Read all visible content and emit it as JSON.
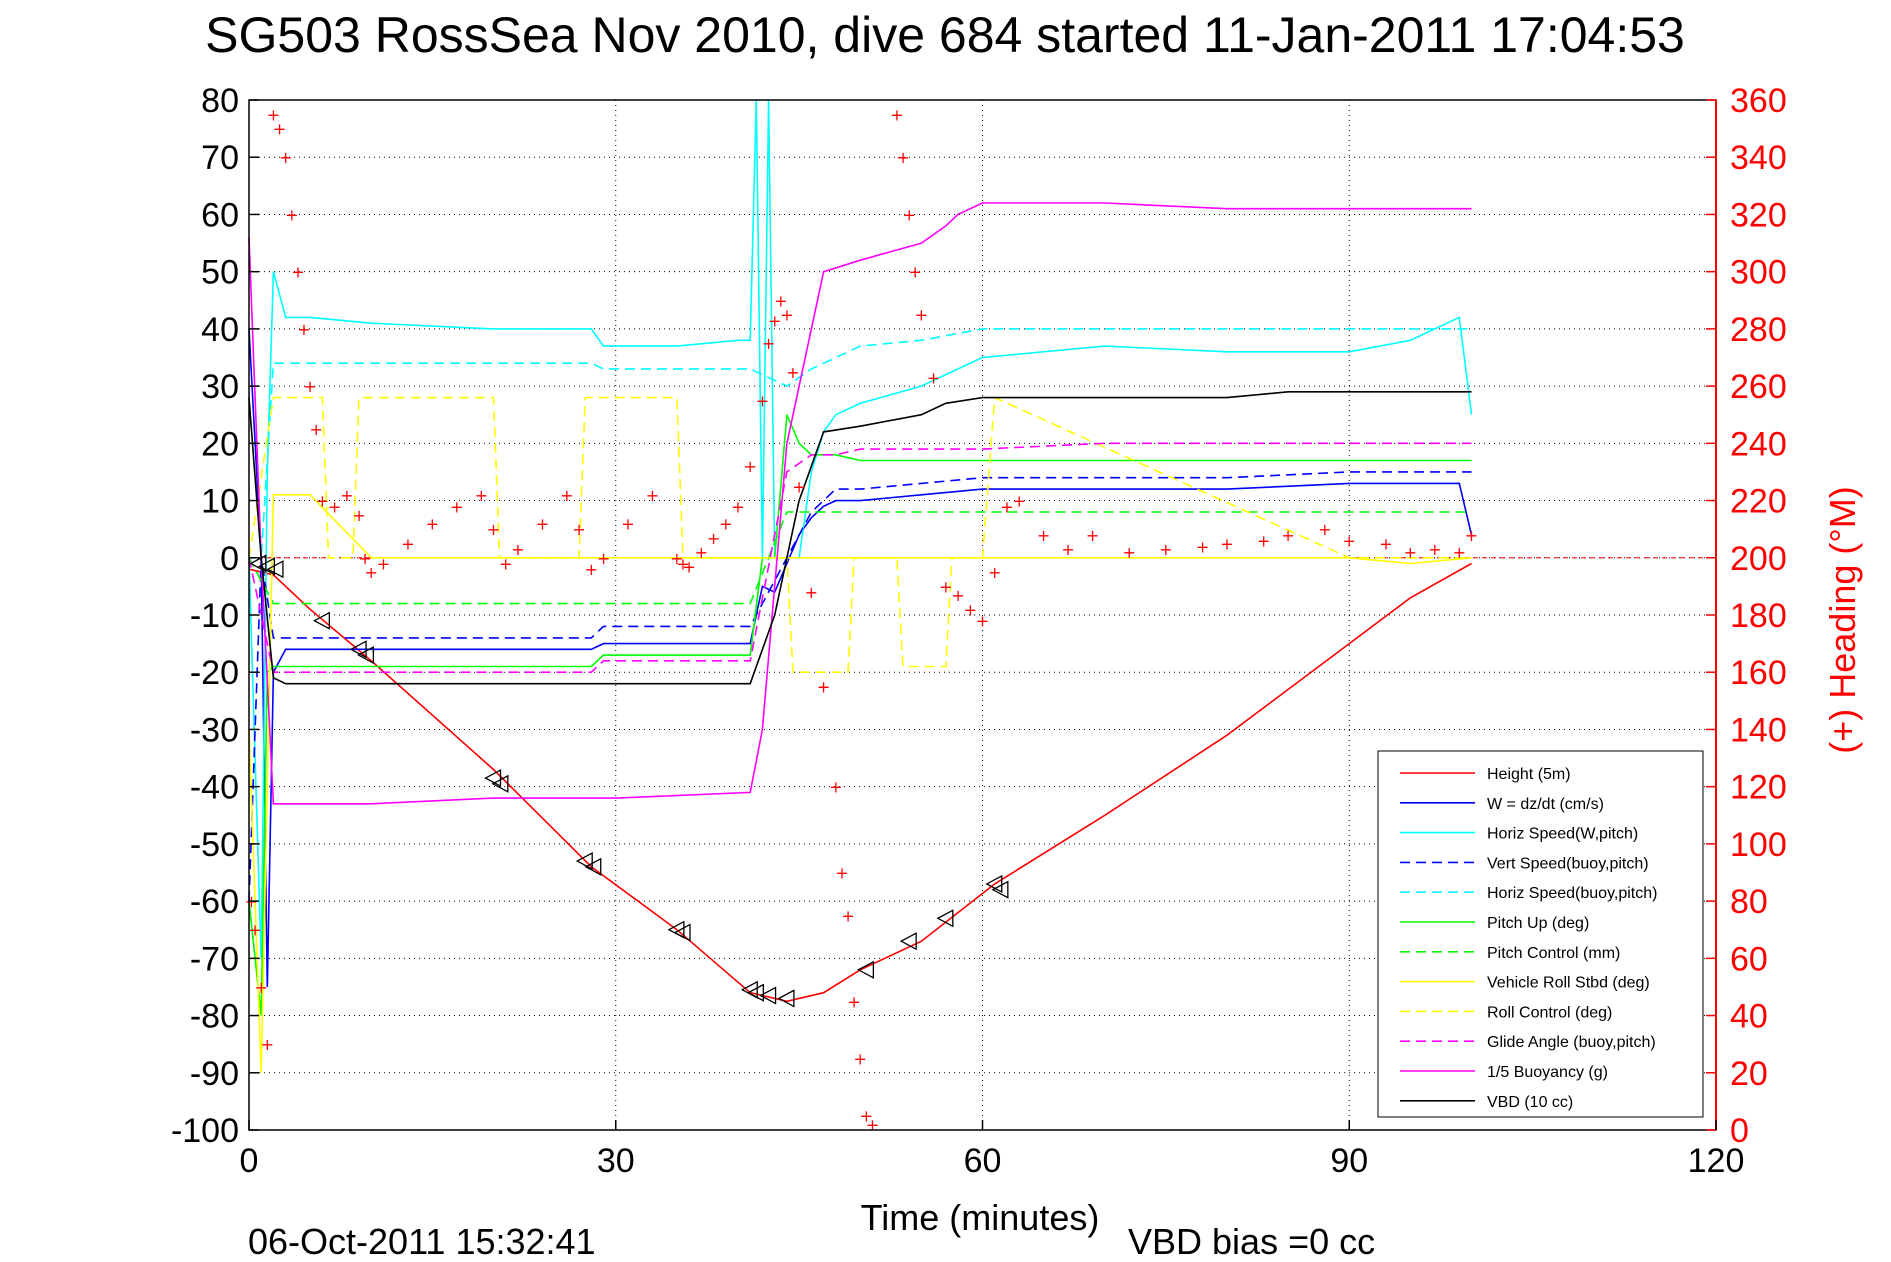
{
  "chart_data": {
    "type": "line",
    "title": "SG503 RossSea Nov 2010, dive 684 started 11-Jan-2011 17:04:53",
    "xlabel": "Time (minutes)",
    "ylabel_right": "(+) Heading (°M)",
    "xlim": [
      0,
      120
    ],
    "ylim": [
      -100,
      80
    ],
    "ylim_right": [
      0,
      360
    ],
    "x_ticks": [
      "0",
      "30",
      "60",
      "90",
      "120"
    ],
    "y_ticks_left": [
      "80",
      "70",
      "60",
      "50",
      "40",
      "30",
      "20",
      "10",
      "0",
      "-10",
      "-20",
      "-30",
      "-40",
      "-50",
      "-60",
      "-70",
      "-80",
      "-90",
      "-100"
    ],
    "y_ticks_right": [
      "360",
      "340",
      "320",
      "300",
      "280",
      "260",
      "240",
      "220",
      "200",
      "180",
      "160",
      "140",
      "120",
      "100",
      "80",
      "60",
      "40",
      "20",
      "0"
    ],
    "grid": true,
    "legend_position": "lower-right",
    "footer_left": "06-Oct-2011 15:32:41",
    "footer_right": "VBD bias =0 cc",
    "series": [
      {
        "name": "Height (5m)",
        "color": "#ff0000",
        "style": "solid",
        "x": [
          0,
          2,
          5,
          10,
          20,
          28,
          35,
          41,
          44,
          47,
          50,
          55,
          61,
          70,
          80,
          90,
          95,
          100
        ],
        "y": [
          -2,
          -3,
          -9,
          -18,
          -37,
          -54,
          -65,
          -76,
          -77.5,
          -76,
          -72,
          -67,
          -57,
          -45,
          -31,
          -15,
          -7,
          -1
        ]
      },
      {
        "name": "W = dz/dt (cm/s)",
        "color": "#0000ff",
        "style": "solid",
        "x": [
          0,
          1,
          1.5,
          2,
          3,
          5,
          10,
          20,
          28,
          29,
          35,
          40,
          41,
          42,
          43,
          45,
          46,
          47,
          48,
          50,
          55,
          60,
          65,
          70,
          80,
          90,
          95,
          99,
          100
        ],
        "y": [
          40,
          0,
          -75,
          -20,
          -16,
          -16,
          -16,
          -16,
          -16,
          -15,
          -15,
          -15,
          -15,
          -5,
          -6,
          4,
          7,
          9,
          10,
          10,
          11,
          12,
          12,
          12,
          12,
          13,
          13,
          13,
          4
        ]
      },
      {
        "name": "Horiz Speed(W,pitch)",
        "color": "#00ffff",
        "style": "solid",
        "x": [
          0,
          1,
          1.5,
          2,
          3,
          5,
          10,
          20,
          28,
          29,
          35,
          40,
          41,
          41.5,
          42,
          42.5,
          43,
          45,
          46,
          47,
          48,
          50,
          55,
          58,
          60,
          70,
          80,
          85,
          90,
          95,
          99,
          100
        ],
        "y": [
          0,
          -70,
          15,
          50,
          42,
          42,
          41,
          40,
          40,
          37,
          37,
          38,
          38,
          80,
          0,
          80,
          0,
          0,
          15,
          22,
          25,
          27,
          30,
          33,
          35,
          37,
          36,
          36,
          36,
          38,
          42,
          25
        ]
      },
      {
        "name": "Vert Speed(buoy,pitch)",
        "color": "#0000ff",
        "style": "dashed",
        "x": [
          0,
          1,
          2,
          3,
          5,
          10,
          20,
          28,
          29,
          35,
          41,
          44,
          46,
          48,
          50,
          55,
          60,
          70,
          80,
          90,
          95,
          100
        ],
        "y": [
          -60,
          0,
          -14,
          -14,
          -14,
          -14,
          -14,
          -14,
          -12,
          -12,
          -12,
          0,
          8,
          12,
          12,
          13,
          14,
          14,
          14,
          15,
          15,
          15
        ]
      },
      {
        "name": "Horiz Speed(buoy,pitch)",
        "color": "#00ffff",
        "style": "dashed",
        "x": [
          0,
          1,
          2,
          3,
          5,
          10,
          20,
          28,
          29,
          35,
          41,
          44,
          46,
          48,
          50,
          55,
          60,
          70,
          80,
          90,
          95,
          100
        ],
        "y": [
          0,
          0,
          34,
          34,
          34,
          34,
          34,
          34,
          33,
          33,
          33,
          30,
          33,
          35,
          37,
          38,
          40,
          40,
          40,
          40,
          40,
          40
        ]
      },
      {
        "name": "Pitch Up (deg)",
        "color": "#00ff00",
        "style": "solid",
        "x": [
          0,
          1,
          1.5,
          2,
          3,
          5,
          10,
          20,
          28,
          29,
          35,
          41,
          42,
          43,
          44,
          45,
          46,
          48,
          50,
          55,
          60,
          70,
          80,
          90,
          95,
          100
        ],
        "y": [
          -60,
          -80,
          -20,
          -19,
          -19,
          -19,
          -19,
          -19,
          -19,
          -17,
          -17,
          -17,
          0,
          0,
          25,
          20,
          18,
          18,
          17,
          17,
          17,
          17,
          17,
          17,
          17,
          17
        ]
      },
      {
        "name": "Pitch Control (mm)",
        "color": "#00ff00",
        "style": "dashed",
        "x": [
          0,
          2,
          3,
          10,
          20,
          30,
          41,
          44,
          47,
          50,
          60,
          70,
          80,
          90,
          100
        ],
        "y": [
          0,
          -8,
          -8,
          -8,
          -8,
          -8,
          -8,
          8,
          8,
          8,
          8,
          8,
          8,
          8,
          8
        ]
      },
      {
        "name": "Vehicle Roll Stbd (deg)",
        "color": "#ffff00",
        "style": "solid",
        "x": [
          0,
          1,
          2,
          3,
          5,
          10,
          20,
          28,
          35,
          41,
          43,
          45,
          50,
          60,
          70,
          80,
          90,
          95,
          100
        ],
        "y": [
          -30,
          -90,
          11,
          11,
          11,
          0,
          0,
          0,
          0,
          0,
          0,
          0,
          0,
          0,
          0,
          0,
          0,
          -1,
          0
        ]
      },
      {
        "name": "Roll Control (deg)",
        "color": "#ffff00",
        "style": "dashed",
        "x": [
          0,
          2,
          3,
          6,
          6.5,
          8.5,
          9,
          20,
          20.5,
          27,
          27.5,
          35,
          35.5,
          44,
          44.5,
          49,
          49.5,
          53,
          53.5,
          57,
          57.5,
          60,
          61,
          90,
          100
        ],
        "y": [
          0,
          28,
          28,
          28,
          0,
          0,
          28,
          28,
          0,
          0,
          28,
          28,
          0,
          0,
          -20,
          -20,
          0,
          0,
          -19,
          -19,
          0,
          0,
          28,
          0,
          0
        ]
      },
      {
        "name": "Glide Angle (buoy,pitch)",
        "color": "#ff00ff",
        "style": "dashed",
        "x": [
          0,
          2,
          3,
          10,
          20,
          28,
          29,
          35,
          41,
          44,
          46,
          48,
          50,
          60,
          70,
          80,
          90,
          100
        ],
        "y": [
          0,
          -20,
          -20,
          -20,
          -20,
          -20,
          -18,
          -18,
          -18,
          15,
          18,
          18,
          19,
          19,
          20,
          20,
          20,
          20
        ]
      },
      {
        "name": "1/5 Buoyancy (g)",
        "color": "#ff00ff",
        "style": "solid",
        "x": [
          0,
          1,
          2,
          3,
          5,
          10,
          20,
          30,
          41,
          42,
          44,
          47,
          50,
          55,
          57,
          58,
          60,
          70,
          80,
          90,
          95,
          100
        ],
        "y": [
          56,
          0,
          -43,
          -43,
          -43,
          -43,
          -42,
          -42,
          -41,
          -30,
          20,
          50,
          52,
          55,
          58,
          60,
          62,
          62,
          61,
          61,
          61,
          61
        ]
      },
      {
        "name": "VBD (10 cc)",
        "color": "#000000",
        "style": "solid",
        "x": [
          0,
          1,
          2,
          3,
          10,
          20,
          30,
          41,
          43,
          45,
          47,
          50,
          55,
          57,
          60,
          65,
          70,
          80,
          85,
          90,
          95,
          100
        ],
        "y": [
          28,
          0,
          -21,
          -22,
          -22,
          -22,
          -22,
          -22,
          -10,
          10,
          22,
          23,
          25,
          27,
          28,
          28,
          28,
          28,
          29,
          29,
          29,
          29
        ]
      }
    ],
    "heading": {
      "marker": "+",
      "color": "#ff0000",
      "axis": "right",
      "x": [
        0.2,
        0.5,
        1,
        1.5,
        2,
        2.5,
        3,
        3.5,
        4,
        4.5,
        5,
        5.5,
        6,
        7,
        8,
        9,
        9.5,
        10,
        11,
        13,
        15,
        17,
        19,
        20,
        21,
        22,
        24,
        26,
        27,
        28,
        29,
        31,
        33,
        35,
        35.5,
        36,
        37,
        38,
        39,
        40,
        41,
        42,
        42.5,
        43,
        43.5,
        44,
        44.5,
        45,
        46,
        47,
        48,
        48.5,
        49,
        49.5,
        50,
        50.5,
        51,
        53,
        53.5,
        54,
        54.5,
        55,
        56,
        57,
        58,
        59,
        60,
        61,
        62,
        63,
        65,
        67,
        69,
        72,
        75,
        78,
        80,
        83,
        85,
        88,
        90,
        93,
        95,
        97,
        99,
        100
      ],
      "y": [
        80,
        70,
        50,
        30,
        355,
        350,
        340,
        320,
        300,
        280,
        260,
        245,
        220,
        218,
        222,
        215,
        200,
        195,
        198,
        205,
        212,
        218,
        222,
        210,
        198,
        203,
        212,
        222,
        210,
        196,
        200,
        212,
        222,
        200,
        198,
        197,
        202,
        207,
        212,
        218,
        232,
        255,
        275,
        283,
        290,
        285,
        265,
        225,
        188,
        155,
        120,
        90,
        75,
        45,
        25,
        5,
        2,
        355,
        340,
        320,
        300,
        285,
        263,
        190,
        187,
        182,
        178,
        195,
        218,
        220,
        208,
        203,
        208,
        202,
        203,
        204,
        205,
        206,
        208,
        210,
        206,
        205,
        202,
        203,
        202,
        208
      ]
    },
    "markers": {
      "color": "#000000",
      "x": [
        0.8,
        1.5,
        2.2,
        6,
        9,
        9.6,
        20,
        20.6,
        27.5,
        28.2,
        35,
        35.5,
        41,
        41.5,
        42.5,
        44,
        50.5,
        54,
        57,
        61,
        61.5
      ],
      "y": [
        -1,
        -1.5,
        -2,
        -11,
        -16,
        -17,
        -38.5,
        -39.5,
        -53,
        -54,
        -65,
        -65.5,
        -75.5,
        -76,
        -76.5,
        -77,
        -72,
        -67,
        -63,
        -57,
        -58
      ]
    }
  },
  "legend": {
    "items": [
      {
        "label": "Height (5m)",
        "color": "#ff0000",
        "style": "solid"
      },
      {
        "label": "W = dz/dt (cm/s)",
        "color": "#0000ff",
        "style": "solid"
      },
      {
        "label": "Horiz Speed(W,pitch)",
        "color": "#00ffff",
        "style": "solid"
      },
      {
        "label": "Vert Speed(buoy,pitch)",
        "color": "#0000ff",
        "style": "dashed"
      },
      {
        "label": "Horiz Speed(buoy,pitch)",
        "color": "#00ffff",
        "style": "dashed"
      },
      {
        "label": "Pitch Up (deg)",
        "color": "#00ff00",
        "style": "solid"
      },
      {
        "label": "Pitch Control (mm)",
        "color": "#00ff00",
        "style": "dashed"
      },
      {
        "label": "Vehicle Roll Stbd (deg)",
        "color": "#ffff00",
        "style": "solid"
      },
      {
        "label": "Roll Control (deg)",
        "color": "#ffff00",
        "style": "dashed"
      },
      {
        "label": "Glide Angle (buoy,pitch)",
        "color": "#ff00ff",
        "style": "dashed"
      },
      {
        "label": "1/5 Buoyancy (g)",
        "color": "#ff00ff",
        "style": "solid"
      },
      {
        "label": "VBD (10 cc)",
        "color": "#000000",
        "style": "solid"
      }
    ]
  }
}
